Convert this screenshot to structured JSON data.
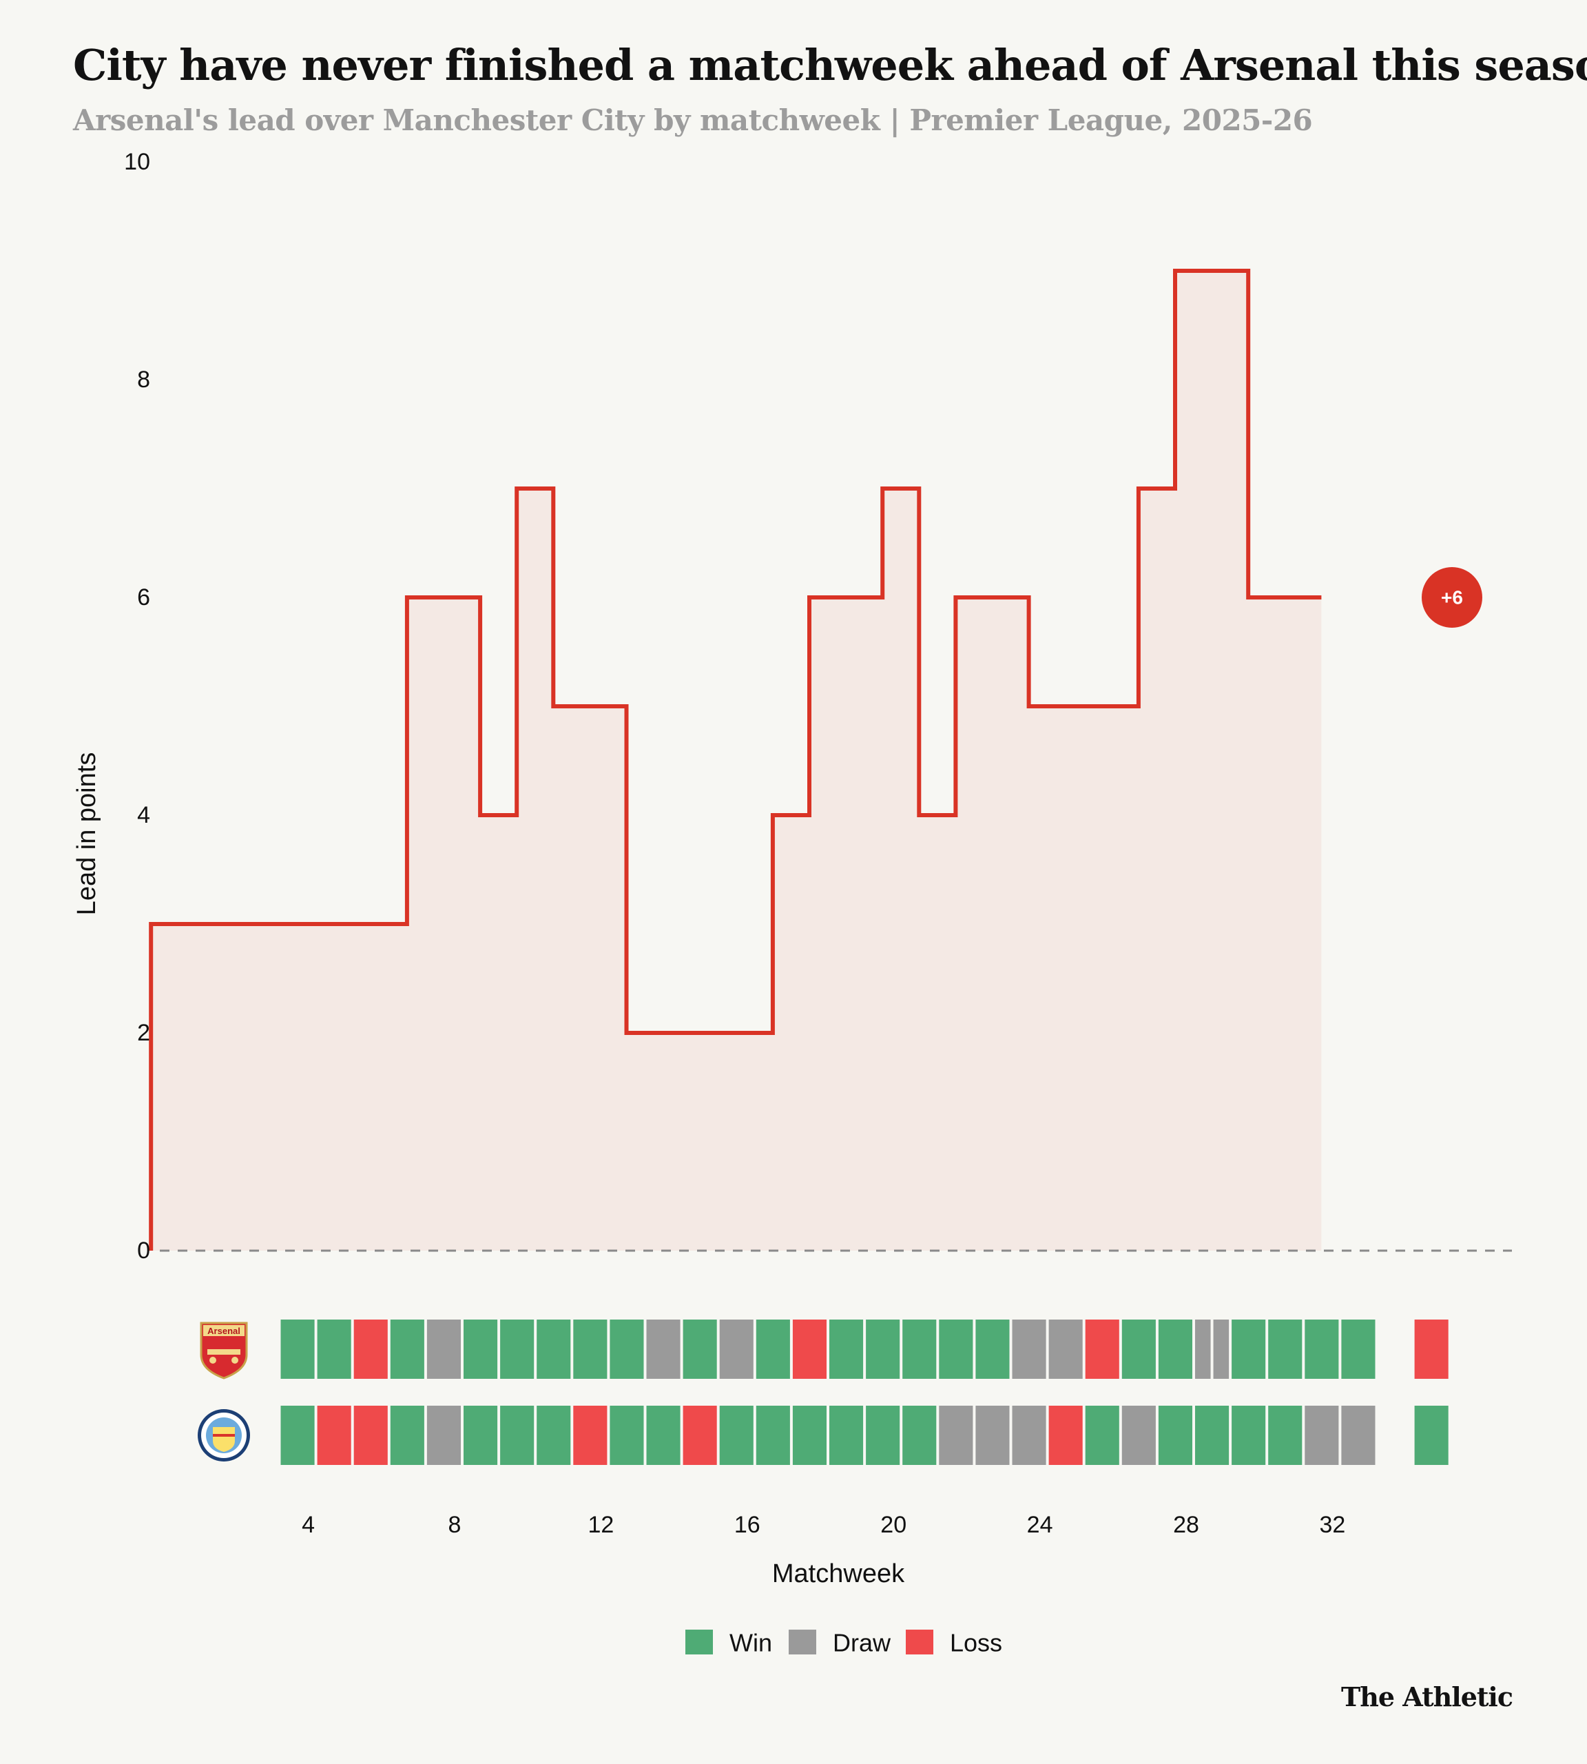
{
  "header": {
    "title": "City have never finished a matchweek ahead of Arsenal this season",
    "subtitle": "Arsenal's lead over Manchester City by matchweek | Premier League, 2025-26"
  },
  "brand": "The Athletic",
  "colors": {
    "line": "#d93325",
    "fill": "#f4e9e4",
    "win": "#4fab75",
    "draw": "#9a9a9a",
    "loss": "#ef4a4b",
    "background": "#f7f7f3"
  },
  "teams": [
    {
      "name": "Arsenal",
      "badge_icon": "arsenal-crest-icon",
      "badge_text": "Arsenal"
    },
    {
      "name": "Manchester City",
      "badge_icon": "manchester-city-crest-icon",
      "badge_text": ""
    }
  ],
  "chart_data": {
    "type": "line",
    "step": true,
    "xlabel": "Matchweek",
    "ylabel": "Lead in points",
    "xlim": [
      0,
      33
    ],
    "ylim": [
      0,
      10
    ],
    "x_ticks": [
      4,
      8,
      12,
      16,
      20,
      24,
      28,
      32
    ],
    "y_ticks": [
      0,
      2,
      4,
      6,
      8,
      10
    ],
    "grid": false,
    "zero_line": "dashed",
    "series": [
      {
        "x": [
          1,
          2,
          3,
          4,
          5,
          6,
          7,
          8,
          9,
          10,
          11,
          12,
          13,
          14,
          15,
          16,
          17,
          18,
          19,
          20,
          21,
          22,
          23,
          24,
          25,
          26,
          27,
          28,
          29,
          30,
          31,
          32
        ],
        "values": [
          3,
          3,
          3,
          3,
          3,
          3,
          3,
          6,
          6,
          4,
          7,
          5,
          5,
          2,
          2,
          2,
          2,
          4,
          6,
          6,
          7,
          4,
          6,
          6,
          5,
          5,
          5,
          7,
          9,
          9,
          6,
          6
        ]
      }
    ],
    "end_label": "+6",
    "legend": {
      "placement": "bottom-center",
      "items": [
        {
          "key": "win",
          "label": "Win"
        },
        {
          "key": "draw",
          "label": "Draw"
        },
        {
          "key": "loss",
          "label": "Loss"
        }
      ]
    },
    "results": {
      "Arsenal": [
        "W",
        "W",
        "L",
        "W",
        "D",
        "W",
        "W",
        "W",
        "W",
        "W",
        "D",
        "W",
        "D",
        "W",
        "L",
        "W",
        "W",
        "W",
        "W",
        "W",
        "D",
        "D",
        "L",
        "W",
        "W",
        "D",
        "D",
        "W",
        "W",
        "W",
        "W",
        "",
        "L"
      ],
      "Manchester City": [
        "W",
        "L",
        "L",
        "W",
        "D",
        "W",
        "W",
        "W",
        "L",
        "W",
        "W",
        "L",
        "W",
        "W",
        "W",
        "W",
        "W",
        "W",
        "D",
        "D",
        "D",
        "L",
        "W",
        "D",
        "W",
        "W",
        "W",
        "W",
        "D",
        "D",
        "",
        "W"
      ]
    }
  }
}
